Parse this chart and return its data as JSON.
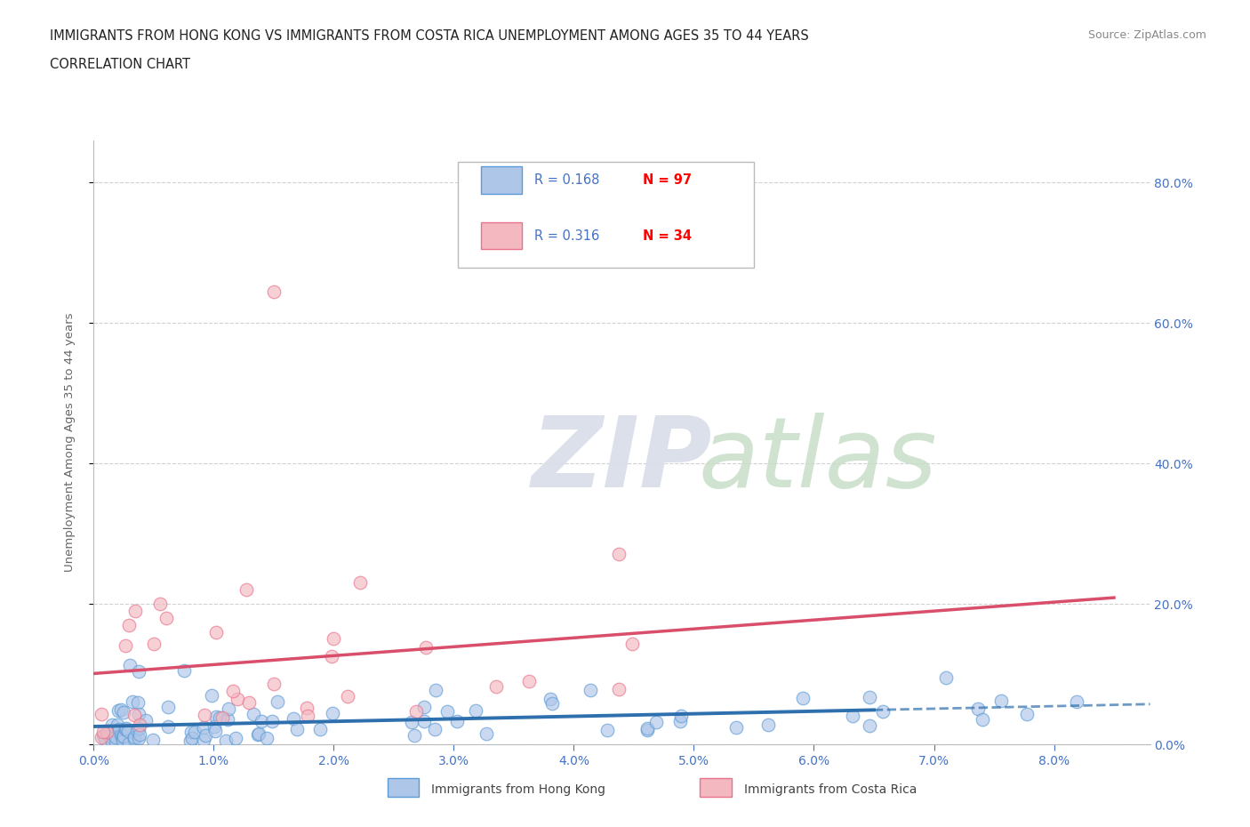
{
  "title_line1": "IMMIGRANTS FROM HONG KONG VS IMMIGRANTS FROM COSTA RICA UNEMPLOYMENT AMONG AGES 35 TO 44 YEARS",
  "title_line2": "CORRELATION CHART",
  "source_text": "Source: ZipAtlas.com",
  "ylabel": "Unemployment Among Ages 35 to 44 years",
  "xlim": [
    0.0,
    0.088
  ],
  "ylim": [
    0.0,
    0.86
  ],
  "hk_color": "#aec6e8",
  "hk_edge_color": "#5b9bd5",
  "cr_color": "#f4b8c1",
  "cr_edge_color": "#e8728a",
  "hk_line_color": "#2e6fad",
  "cr_line_color": "#d94f6b",
  "legend_R_color": "#4472C4",
  "legend_N_color": "#FF0000",
  "background_color": "#ffffff",
  "title_color": "#222222",
  "ylabel_color": "#666666",
  "tick_color": "#4472C4",
  "source_color": "#888888",
  "grid_color": "#cccccc",
  "watermark_zip_color": "#d8dde8",
  "watermark_atlas_color": "#d8e8d8",
  "hk_N": 97,
  "cr_N": 34,
  "hk_R": 0.168,
  "cr_R": 0.316
}
